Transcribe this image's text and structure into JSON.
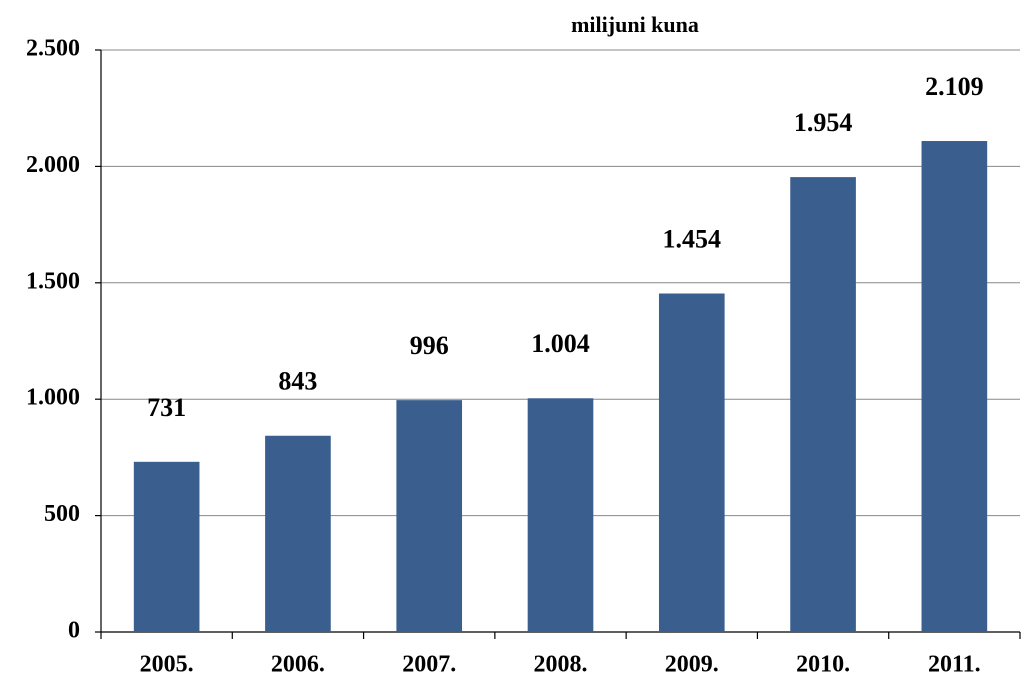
{
  "chart_data": {
    "type": "bar",
    "title": "milijuni kuna",
    "categories": [
      "2005.",
      "2006.",
      "2007.",
      "2008.",
      "2009.",
      "2010.",
      "2011."
    ],
    "values": [
      731,
      843,
      996,
      1004,
      1454,
      1954,
      2109
    ],
    "value_labels": [
      "731",
      "843",
      "996",
      "1.004",
      "1.454",
      "1.954",
      "2.109"
    ],
    "color": "#3a5f8f",
    "ylim": [
      0,
      2500
    ],
    "yticks": [
      0,
      500,
      {
        "value": 1000,
        "label": "1.000"
      },
      {
        "value": 1500,
        "label": "1.500"
      },
      {
        "value": 2000,
        "label": "2.000"
      },
      {
        "value": 2500,
        "label": "2.500"
      }
    ],
    "grid": true
  }
}
